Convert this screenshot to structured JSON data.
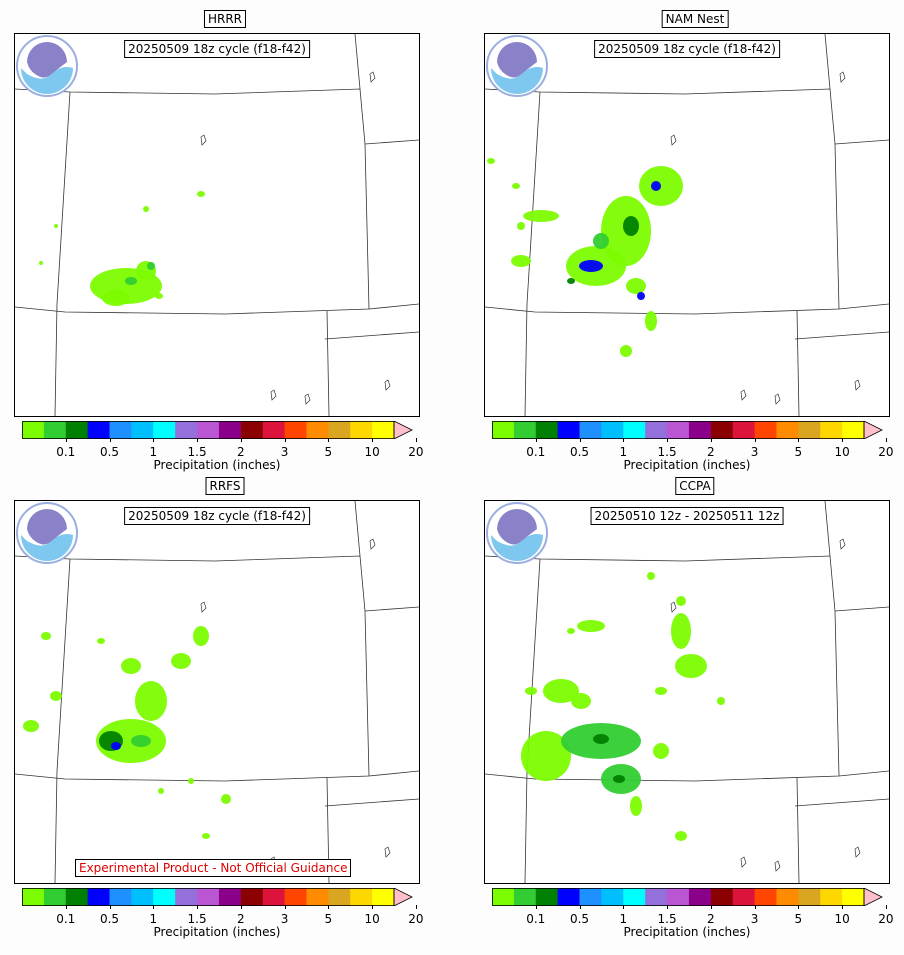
{
  "panels": [
    {
      "title": "HRRR",
      "cycle": "20250509 18z cycle (f18-f42)",
      "disclaimer": ""
    },
    {
      "title": "NAM Nest",
      "cycle": "20250509 18z cycle (f18-f42)",
      "disclaimer": ""
    },
    {
      "title": "RRFS",
      "cycle": "20250509 18z cycle (f18-f42)",
      "disclaimer": "Experimental Product - Not Official Guidance"
    },
    {
      "title": "CCPA",
      "cycle": "20250510 12z - 20250511 12z",
      "disclaimer": ""
    }
  ],
  "colorbar": {
    "title": "Precipitation (inches)",
    "ticks": [
      "0.1",
      "0.5",
      "1",
      "1.5",
      "2",
      "3",
      "5",
      "10",
      "20"
    ],
    "colors": [
      "#7cfc00",
      "#32cd32",
      "#008000",
      "#0000ff",
      "#1e90ff",
      "#00bfff",
      "#00ffff",
      "#9370db",
      "#ba55d3",
      "#8b008b",
      "#8b0000",
      "#dc143c",
      "#ff4500",
      "#ff8c00",
      "#daa520",
      "#ffd700",
      "#ffff00",
      "#ffc0cb"
    ]
  },
  "logo": {
    "name": "NOAA"
  }
}
